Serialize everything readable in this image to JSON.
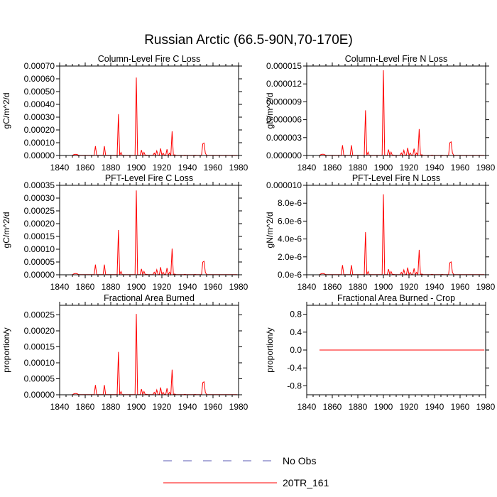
{
  "figure": {
    "title": "Russian Arctic (66.5-90N,70-170E)"
  },
  "legend": [
    {
      "label": "No Obs",
      "color": "#5a5ab4",
      "dash": true
    },
    {
      "label": "20TR_161",
      "color": "#ff0000",
      "dash": false
    }
  ],
  "colors": {
    "series": "#ff0000",
    "axis": "#000000"
  },
  "chart_data": [
    {
      "id": "c-loss",
      "type": "line",
      "title": "Column-Level Fire C Loss",
      "ylabel": "gC/m^2/d",
      "xlim": [
        1840,
        1980
      ],
      "ylim": [
        0,
        0.0007
      ],
      "xticks": [
        1840,
        1860,
        1880,
        1900,
        1920,
        1940,
        1960,
        1980
      ],
      "yticks": [
        0,
        0.0001,
        0.0002,
        0.0003,
        0.0004,
        0.0005,
        0.0006,
        0.0007
      ],
      "ytick_labels": [
        "0.00000",
        "0.00010",
        "0.00020",
        "0.00030",
        "0.00040",
        "0.00050",
        "0.00060",
        "0.00070"
      ],
      "series": [
        {
          "name": "20TR_161",
          "peak_scale": 0.00061
        }
      ]
    },
    {
      "id": "n-loss",
      "type": "line",
      "title": "Column-Level Fire N Loss",
      "ylabel": "gN/m^2/d",
      "xlim": [
        1840,
        1980
      ],
      "ylim": [
        0,
        1.5e-05
      ],
      "xticks": [
        1840,
        1860,
        1880,
        1900,
        1920,
        1940,
        1960,
        1980
      ],
      "yticks": [
        0,
        3e-06,
        6e-06,
        9e-06,
        1.2e-05,
        1.5e-05
      ],
      "ytick_labels": [
        "0.000000",
        "0.000003",
        "0.000006",
        "0.000009",
        "0.000012",
        "0.000015"
      ],
      "series": [
        {
          "name": "20TR_161",
          "peak_scale": 1.43e-05
        }
      ]
    },
    {
      "id": "pft-c-loss",
      "type": "line",
      "title": "PFT-Level Fire C Loss",
      "ylabel": "gC/m^2/d",
      "xlim": [
        1840,
        1980
      ],
      "ylim": [
        0,
        0.00035
      ],
      "xticks": [
        1840,
        1860,
        1880,
        1900,
        1920,
        1940,
        1960,
        1980
      ],
      "yticks": [
        0,
        5e-05,
        0.0001,
        0.00015,
        0.0002,
        0.00025,
        0.0003,
        0.00035
      ],
      "ytick_labels": [
        "0.00000",
        "0.00005",
        "0.00010",
        "0.00015",
        "0.00020",
        "0.00025",
        "0.00030",
        "0.00035"
      ],
      "series": [
        {
          "name": "20TR_161",
          "peak_scale": 0.00033
        }
      ]
    },
    {
      "id": "pft-n-loss",
      "type": "line",
      "title": "PFT-Level Fire N Loss",
      "ylabel": "gN/m^2/d",
      "xlim": [
        1840,
        1980
      ],
      "ylim": [
        0,
        1e-05
      ],
      "xticks": [
        1840,
        1860,
        1880,
        1900,
        1920,
        1940,
        1960,
        1980
      ],
      "yticks": [
        0,
        2e-06,
        4e-06,
        6e-06,
        8e-06,
        1e-05
      ],
      "ytick_labels": [
        "0.0e-6",
        "2.0e-6",
        "4.0e-6",
        "6.0e-6",
        "8.0e-6",
        "0.000010"
      ],
      "series": [
        {
          "name": "20TR_161",
          "peak_scale": 9e-06
        }
      ]
    },
    {
      "id": "area-burned",
      "type": "line",
      "title": "Fractional Area Burned",
      "ylabel": "proportion/y",
      "xlim": [
        1840,
        1980
      ],
      "ylim": [
        0,
        0.00028
      ],
      "xticks": [
        1840,
        1860,
        1880,
        1900,
        1920,
        1940,
        1960,
        1980
      ],
      "yticks": [
        0,
        5e-05,
        0.0001,
        0.00015,
        0.0002,
        0.00025
      ],
      "ytick_labels": [
        "0.00000",
        "0.00005",
        "0.00010",
        "0.00015",
        "0.00020",
        "0.00025"
      ],
      "series": [
        {
          "name": "20TR_161",
          "peak_scale": 0.000253
        }
      ]
    },
    {
      "id": "area-burned-crop",
      "type": "line",
      "title": "Fractional Area Burned - Crop",
      "ylabel": "proportion/y",
      "xlim": [
        1840,
        1980
      ],
      "ylim": [
        -1,
        1
      ],
      "xticks": [
        1840,
        1860,
        1880,
        1900,
        1920,
        1940,
        1960,
        1980
      ],
      "yticks": [
        -0.8,
        -0.4,
        0,
        0.4,
        0.8
      ],
      "ytick_labels": [
        "-0.8",
        "-0.4",
        "0.0",
        "0.4",
        "0.8"
      ],
      "series": [
        {
          "name": "20TR_161",
          "constant": 0,
          "x_range": [
            1850,
            1979
          ]
        }
      ]
    }
  ],
  "shared_profile": {
    "x_start": 1850,
    "x_end": 1979,
    "baseline": 0.002,
    "spikes": [
      [
        1851,
        0.01
      ],
      [
        1852,
        0.015
      ],
      [
        1853,
        0.015
      ],
      [
        1854,
        0.01
      ],
      [
        1868,
        0.12
      ],
      [
        1875,
        0.12
      ],
      [
        1886,
        0.53
      ],
      [
        1888,
        0.04
      ],
      [
        1900,
        1.0
      ],
      [
        1904,
        0.07
      ],
      [
        1906,
        0.04
      ],
      [
        1908,
        0.005
      ],
      [
        1914,
        0.03
      ],
      [
        1916,
        0.06
      ],
      [
        1919,
        0.09
      ],
      [
        1921,
        0.03
      ],
      [
        1924,
        0.08
      ],
      [
        1926,
        0.03
      ],
      [
        1928,
        0.31
      ],
      [
        1930,
        0.01
      ],
      [
        1938,
        0.005
      ],
      [
        1946,
        0.004
      ],
      [
        1952,
        0.15
      ],
      [
        1953,
        0.16
      ],
      [
        1954,
        0.03
      ]
    ]
  }
}
